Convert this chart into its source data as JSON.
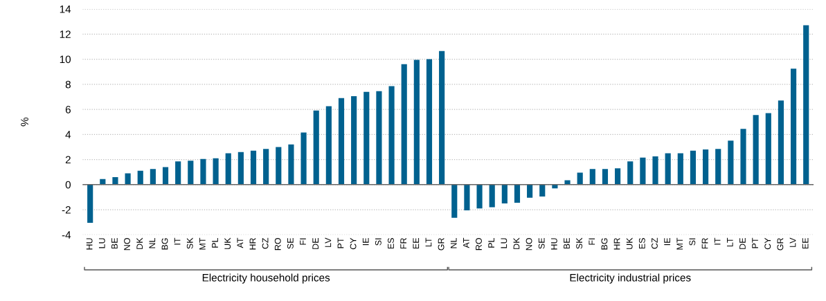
{
  "chart_data": {
    "type": "bar",
    "ylabel": "%",
    "categories": [
      "HU",
      "LU",
      "BE",
      "NO",
      "DK",
      "NL",
      "BG",
      "IT",
      "SK",
      "MT",
      "PL",
      "UK",
      "AT",
      "HR",
      "CZ",
      "RO",
      "SE",
      "FI",
      "DE",
      "LV",
      "PT",
      "CY",
      "IE",
      "SI",
      "ES",
      "FR",
      "EE",
      "LT",
      "GR",
      "NL",
      "AT",
      "RO",
      "PL",
      "LU",
      "DK",
      "NO",
      "SE",
      "HU",
      "BE",
      "SK",
      "FI",
      "BG",
      "HR",
      "UK",
      "ES",
      "CZ",
      "IE",
      "MT",
      "SI",
      "FR",
      "IT",
      "LT",
      "DE",
      "PT",
      "CY",
      "GR",
      "LV",
      "EE"
    ],
    "values": [
      -3.05,
      0.45,
      0.6,
      0.9,
      1.1,
      1.25,
      1.4,
      1.85,
      1.9,
      2.05,
      2.1,
      2.5,
      2.6,
      2.7,
      2.85,
      3.0,
      3.2,
      4.15,
      5.9,
      6.25,
      6.9,
      7.05,
      7.4,
      7.45,
      7.85,
      9.6,
      9.95,
      10.0,
      10.65,
      -2.65,
      -2.05,
      -1.9,
      -1.8,
      -1.5,
      -1.45,
      -1.05,
      -0.95,
      -0.3,
      0.35,
      0.95,
      1.25,
      1.25,
      1.3,
      1.85,
      2.15,
      2.25,
      2.5,
      2.5,
      2.7,
      2.8,
      2.85,
      3.5,
      4.45,
      5.55,
      5.7,
      6.7,
      9.25,
      12.7
    ],
    "color": "#00618f",
    "ylim": [
      -4,
      14
    ],
    "yticks": [
      -4,
      -2,
      0,
      2,
      4,
      6,
      8,
      10,
      12,
      14
    ],
    "grid": "y",
    "annotations": [
      "Electricity household prices",
      "Electricity industrial prices"
    ]
  }
}
